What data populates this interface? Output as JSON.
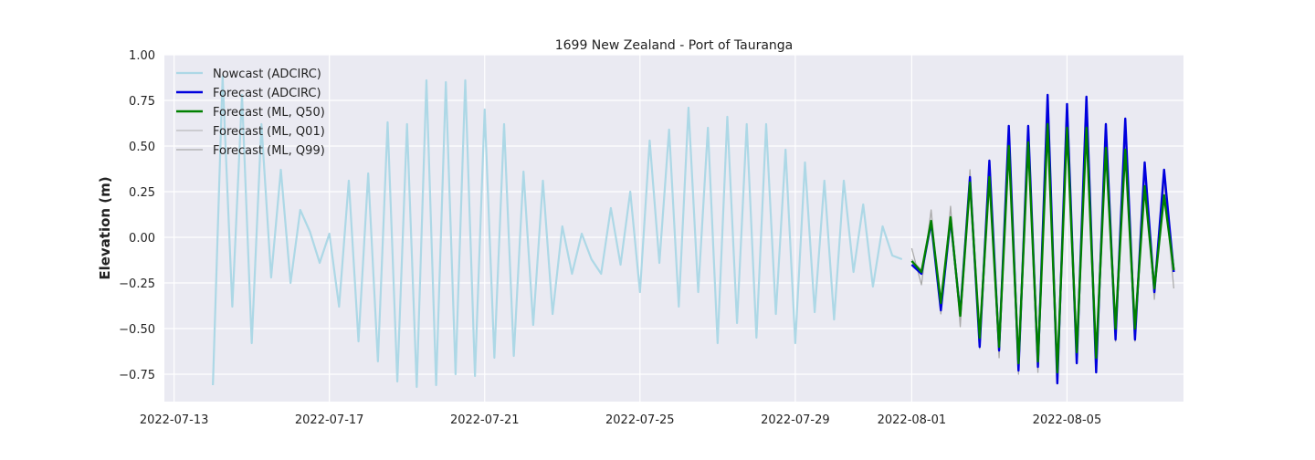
{
  "chart_data": {
    "type": "line",
    "title": "1699 New Zealand - Port of Tauranga",
    "xlabel": "",
    "ylabel": "Elevation (m)",
    "ylim": [
      -0.9,
      1.0
    ],
    "xlim": [
      "2022-07-12T18:00",
      "2022-08-08T00:00"
    ],
    "grid": true,
    "legend_position": "top-left",
    "x_ticks": [
      "2022-07-13",
      "2022-07-17",
      "2022-07-21",
      "2022-07-25",
      "2022-07-29",
      "2022-08-01",
      "2022-08-05"
    ],
    "y_ticks": [
      -0.75,
      -0.5,
      -0.25,
      0.0,
      0.25,
      0.5,
      0.75,
      1.0
    ],
    "y_tick_labels": [
      "−0.75",
      "−0.50",
      "−0.25",
      "0.00",
      "0.25",
      "0.50",
      "0.75",
      "1.00"
    ],
    "series": [
      {
        "name": "Nowcast (ADCIRC)",
        "color": "#add8e6",
        "width": 2.2,
        "x_start": "2022-07-14T00:00",
        "x_step_hours": 6,
        "values": [
          -0.81,
          0.88,
          -0.38,
          0.78,
          -0.58,
          0.62,
          -0.22,
          0.37,
          -0.25,
          0.15,
          0.03,
          -0.14,
          0.02,
          -0.38,
          0.31,
          -0.57,
          0.35,
          -0.68,
          0.63,
          -0.79,
          0.62,
          -0.82,
          0.86,
          -0.81,
          0.85,
          -0.75,
          0.86,
          -0.76,
          0.7,
          -0.66,
          0.62,
          -0.65,
          0.36,
          -0.48,
          0.31,
          -0.42,
          0.06,
          -0.2,
          0.02,
          -0.12,
          -0.2,
          0.16,
          -0.15,
          0.25,
          -0.3,
          0.53,
          -0.14,
          0.59,
          -0.38,
          0.71,
          -0.3,
          0.6,
          -0.58,
          0.66,
          -0.47,
          0.62,
          -0.55,
          0.62,
          -0.42,
          0.48,
          -0.58,
          0.41,
          -0.41,
          0.31,
          -0.45,
          0.31,
          -0.19,
          0.18,
          -0.27,
          0.06,
          -0.1,
          -0.12
        ]
      },
      {
        "name": "Forecast (ADCIRC)",
        "color": "#0000dd",
        "width": 2.4,
        "x_start": "2022-08-01T00:00",
        "x_step_hours": 6,
        "values": [
          -0.15,
          -0.2,
          0.08,
          -0.4,
          0.1,
          -0.42,
          0.33,
          -0.6,
          0.42,
          -0.62,
          0.61,
          -0.73,
          0.61,
          -0.71,
          0.78,
          -0.8,
          0.73,
          -0.69,
          0.77,
          -0.74,
          0.62,
          -0.56,
          0.65,
          -0.56,
          0.41,
          -0.3,
          0.37,
          -0.19
        ]
      },
      {
        "name": "Forecast (ML, Q50)",
        "color": "#008000",
        "width": 2.4,
        "x_start": "2022-08-01T00:00",
        "x_step_hours": 6,
        "values": [
          -0.13,
          -0.19,
          0.09,
          -0.36,
          0.11,
          -0.43,
          0.3,
          -0.55,
          0.33,
          -0.6,
          0.5,
          -0.69,
          0.52,
          -0.68,
          0.62,
          -0.74,
          0.6,
          -0.63,
          0.6,
          -0.66,
          0.49,
          -0.5,
          0.48,
          -0.5,
          0.28,
          -0.28,
          0.23,
          -0.18
        ]
      },
      {
        "name": "Forecast (ML, Q01)",
        "color": "#bbbbbb",
        "width": 1.3,
        "x_start": "2022-08-01T00:00",
        "x_step_hours": 6,
        "values": [
          -0.12,
          -0.18,
          0.08,
          -0.34,
          0.1,
          -0.4,
          0.28,
          -0.52,
          0.31,
          -0.57,
          0.48,
          -0.66,
          0.5,
          -0.65,
          0.6,
          -0.71,
          0.58,
          -0.6,
          0.58,
          -0.63,
          0.47,
          -0.48,
          0.46,
          -0.48,
          0.27,
          -0.27,
          0.22,
          -0.17
        ]
      },
      {
        "name": "Forecast (ML, Q99)",
        "color": "#aaaaaa",
        "width": 1.3,
        "x_start": "2022-08-01T00:00",
        "x_step_hours": 6,
        "values": [
          -0.06,
          -0.26,
          0.15,
          -0.42,
          0.17,
          -0.49,
          0.37,
          -0.61,
          0.4,
          -0.66,
          0.57,
          -0.75,
          0.59,
          -0.74,
          0.69,
          -0.8,
          0.67,
          -0.69,
          0.67,
          -0.72,
          0.56,
          -0.57,
          0.55,
          -0.57,
          0.35,
          -0.34,
          0.3,
          -0.28
        ]
      }
    ]
  }
}
